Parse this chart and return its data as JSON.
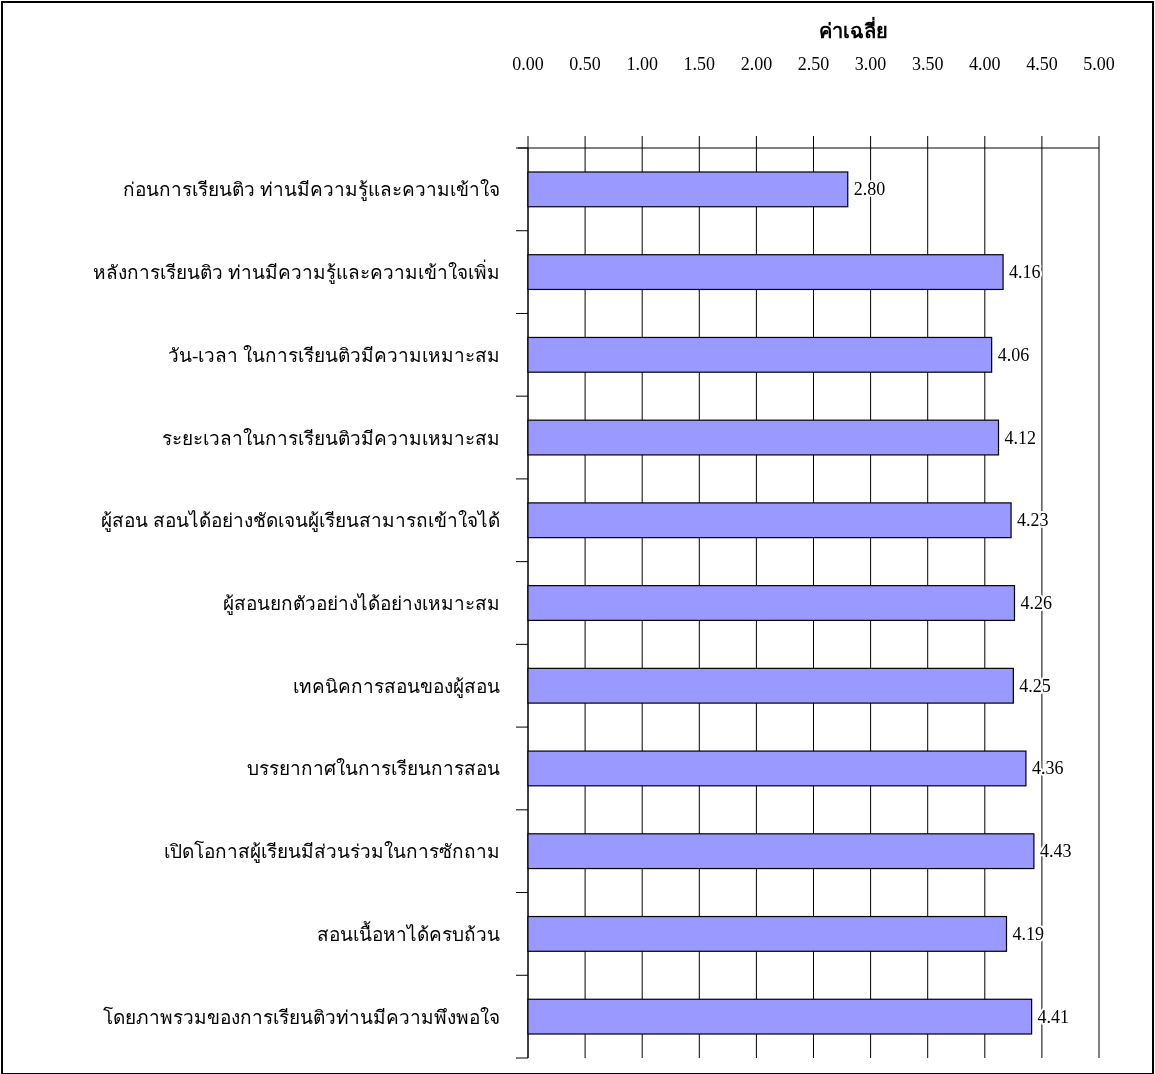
{
  "chart_data": {
    "type": "bar",
    "orientation": "horizontal",
    "xlabel": "ค่าเฉลี่ย",
    "categories": [
      "ก่อนการเรียนติว ท่านมีความรู้และความเข้าใจ",
      "หลังการเรียนติว ท่านมีความรู้และความเข้าใจเพิ่ม",
      "วัน-เวลา ในการเรียนติวมีความเหมาะสม",
      "ระยะเวลาในการเรียนติวมีความเหมาะสม",
      "ผู้สอน สอนได้อย่างชัดเจนผู้เรียนสามารถเข้าใจได้",
      "ผู้สอนยกตัวอย่างได้อย่างเหมาะสม",
      "เทคนิคการสอนของผู้สอน",
      "บรรยากาศในการเรียนการสอน",
      "เปิดโอกาสผู้เรียนมีส่วนร่วมในการซักถาม",
      "สอนเนื้อหาได้ครบถ้วน",
      "โดยภาพรวมของการเรียนติวท่านมีความพึงพอใจ"
    ],
    "values": [
      2.8,
      4.16,
      4.06,
      4.12,
      4.23,
      4.26,
      4.25,
      4.36,
      4.43,
      4.19,
      4.41
    ],
    "value_labels": [
      "2.80",
      "4.16",
      "4.06",
      "4.12",
      "4.23",
      "4.26",
      "4.25",
      "4.36",
      "4.43",
      "4.19",
      "4.41"
    ],
    "color": "#9999ff",
    "xlim": [
      0,
      5
    ],
    "xticks": [
      {
        "value": 0,
        "label": "0.00"
      },
      {
        "value": 0.5,
        "label": "0.50"
      },
      {
        "value": 1,
        "label": "1.00"
      },
      {
        "value": 1.5,
        "label": "1.50"
      },
      {
        "value": 2,
        "label": "2.00"
      },
      {
        "value": 2.5,
        "label": "2.50"
      },
      {
        "value": 3,
        "label": "3.00"
      },
      {
        "value": 3.5,
        "label": "3.50"
      },
      {
        "value": 4,
        "label": "4.00"
      },
      {
        "value": 4.5,
        "label": "4.50"
      },
      {
        "value": 5,
        "label": "5.00"
      }
    ],
    "grid": "x"
  }
}
